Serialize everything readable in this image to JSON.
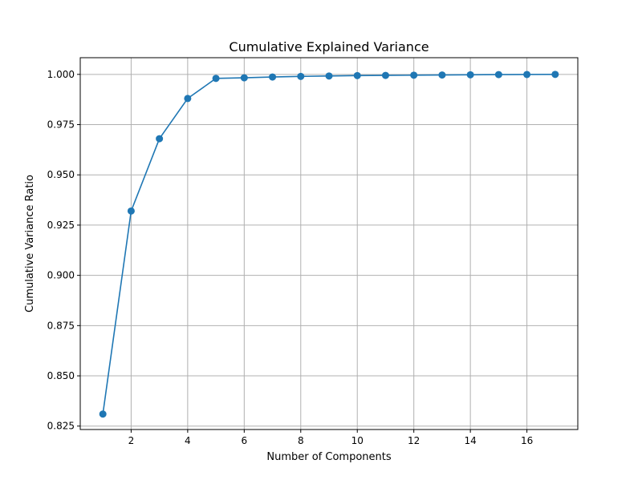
{
  "chart_data": {
    "type": "line",
    "title": "Cumulative Explained Variance",
    "xlabel": "Number of Components",
    "ylabel": "Cumulative Variance Ratio",
    "xlim": [
      0.2,
      17.8
    ],
    "ylim": [
      0.8233,
      1.0083
    ],
    "xticks": [
      2,
      4,
      6,
      8,
      10,
      12,
      14,
      16
    ],
    "yticks": [
      0.825,
      0.85,
      0.875,
      0.9,
      0.925,
      0.95,
      0.975,
      1.0
    ],
    "ytick_labels": [
      "0.825",
      "0.850",
      "0.875",
      "0.900",
      "0.925",
      "0.950",
      "0.975",
      "1.000"
    ],
    "grid": true,
    "marker": "circle",
    "series": [
      {
        "color": "#1f77b4",
        "x": [
          1,
          2,
          3,
          4,
          5,
          6,
          7,
          8,
          9,
          10,
          11,
          12,
          13,
          14,
          15,
          16,
          17
        ],
        "y": [
          0.831,
          0.932,
          0.968,
          0.988,
          0.998,
          0.9983,
          0.9987,
          0.999,
          0.9992,
          0.9994,
          0.9995,
          0.9996,
          0.9997,
          0.9998,
          0.9999,
          0.99995,
          1.0
        ]
      }
    ]
  }
}
